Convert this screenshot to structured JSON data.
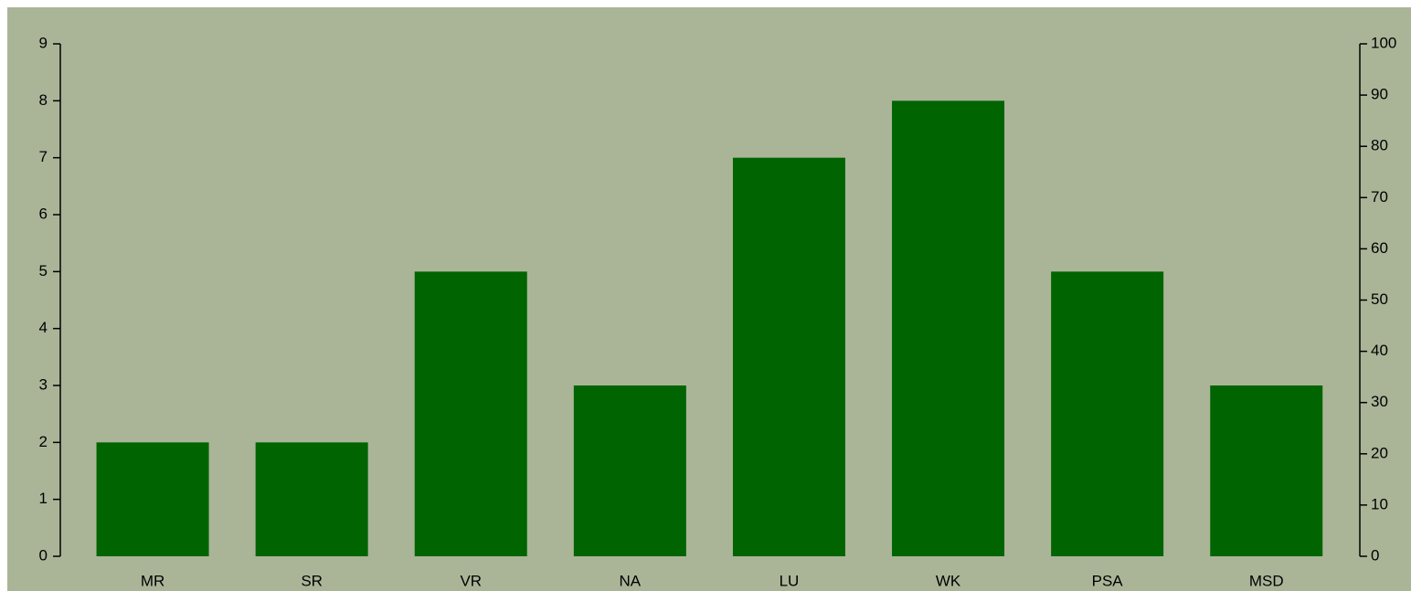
{
  "chart_data": {
    "type": "bar",
    "categories": [
      "MR",
      "SR",
      "VR",
      "NA",
      "LU",
      "WK",
      "PSA",
      "MSD"
    ],
    "values": [
      2,
      2,
      5,
      3,
      7,
      8,
      5,
      3
    ],
    "color": "#006400",
    "ylim": [
      0,
      9
    ],
    "yticks": [
      0,
      1,
      2,
      3,
      4,
      5,
      6,
      7,
      8,
      9
    ],
    "y2lim": [
      0,
      100
    ],
    "y2ticks": [
      0,
      10,
      20,
      30,
      40,
      50,
      60,
      70,
      80,
      90,
      100
    ],
    "grid": false
  }
}
